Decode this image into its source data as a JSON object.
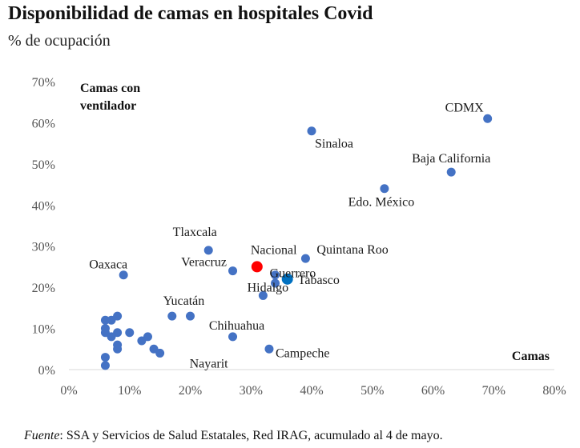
{
  "chart_data": {
    "type": "scatter",
    "title": "Disponibilidad de camas en hospitales Covid",
    "subtitle": "% de ocupación",
    "xlabel": "Camas",
    "ylabel": "Camas con ventilador",
    "xlim": [
      0,
      80
    ],
    "ylim": [
      0,
      70
    ],
    "xticks": [
      0,
      10,
      20,
      30,
      40,
      50,
      60,
      70,
      80
    ],
    "yticks": [
      0,
      10,
      20,
      30,
      40,
      50,
      60,
      70
    ],
    "tick_suffix": "%",
    "grid": false,
    "colors": {
      "default": "#4472C4",
      "nacional": "#FF0000",
      "tabasco": "#0070C0"
    },
    "points": [
      {
        "x": 69,
        "y": 61,
        "label": "CDMX",
        "color": "default"
      },
      {
        "x": 63,
        "y": 48,
        "label": "Baja California",
        "color": "default"
      },
      {
        "x": 52,
        "y": 44,
        "label": "Edo. México",
        "color": "default"
      },
      {
        "x": 40,
        "y": 58,
        "label": "Sinaloa",
        "color": "default"
      },
      {
        "x": 39,
        "y": 27,
        "label": "Quintana Roo",
        "color": "default"
      },
      {
        "x": 31,
        "y": 25,
        "label": "Nacional",
        "color": "nacional"
      },
      {
        "x": 36,
        "y": 22,
        "label": "Tabasco",
        "color": "tabasco"
      },
      {
        "x": 34,
        "y": 23,
        "label": "Guerrero",
        "color": "default"
      },
      {
        "x": 34,
        "y": 21,
        "label": "",
        "color": "default"
      },
      {
        "x": 32,
        "y": 18,
        "label": "Hidalgo",
        "color": "default"
      },
      {
        "x": 23,
        "y": 29,
        "label": "Tlaxcala",
        "color": "default"
      },
      {
        "x": 27,
        "y": 24,
        "label": "Veracruz",
        "color": "default"
      },
      {
        "x": 9,
        "y": 23,
        "label": "Oaxaca",
        "color": "default"
      },
      {
        "x": 20,
        "y": 13,
        "label": "Yucatán",
        "color": "default"
      },
      {
        "x": 17,
        "y": 13,
        "label": "",
        "color": "default"
      },
      {
        "x": 27,
        "y": 8,
        "label": "Chihuahua",
        "color": "default"
      },
      {
        "x": 33,
        "y": 5,
        "label": "Campeche",
        "color": "default"
      },
      {
        "x": 15,
        "y": 4,
        "label": "Nayarit",
        "color": "default"
      },
      {
        "x": 14,
        "y": 5,
        "label": "",
        "color": "default"
      },
      {
        "x": 13,
        "y": 8,
        "label": "",
        "color": "default"
      },
      {
        "x": 12,
        "y": 7,
        "label": "",
        "color": "default"
      },
      {
        "x": 10,
        "y": 9,
        "label": "",
        "color": "default"
      },
      {
        "x": 8,
        "y": 13,
        "label": "",
        "color": "default"
      },
      {
        "x": 8,
        "y": 9,
        "label": "",
        "color": "default"
      },
      {
        "x": 8,
        "y": 6,
        "label": "",
        "color": "default"
      },
      {
        "x": 8,
        "y": 5,
        "label": "",
        "color": "default"
      },
      {
        "x": 7,
        "y": 12,
        "label": "",
        "color": "default"
      },
      {
        "x": 7,
        "y": 8,
        "label": "",
        "color": "default"
      },
      {
        "x": 6,
        "y": 12,
        "label": "",
        "color": "default"
      },
      {
        "x": 6,
        "y": 10,
        "label": "",
        "color": "default"
      },
      {
        "x": 6,
        "y": 9,
        "label": "",
        "color": "default"
      },
      {
        "x": 6,
        "y": 3,
        "label": "",
        "color": "default"
      },
      {
        "x": 6,
        "y": 1,
        "label": "",
        "color": "default"
      }
    ]
  },
  "source": {
    "prefix": "Fuente",
    "text": ": SSA y Servicios de Salud Estatales, Red IRAG, acumulado al 4 de mayo."
  }
}
